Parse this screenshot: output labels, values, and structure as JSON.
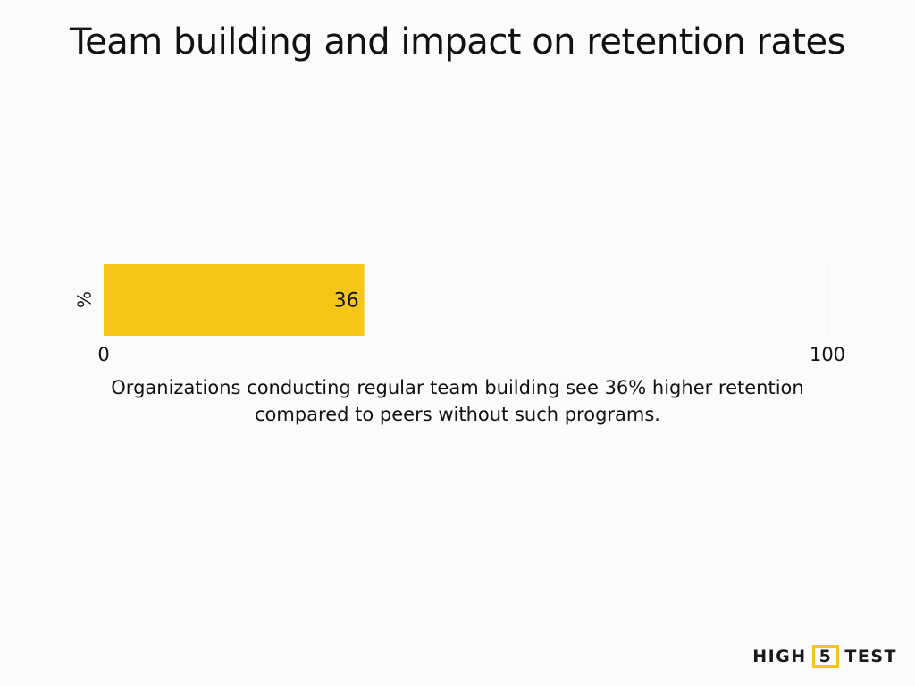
{
  "chart_data": {
    "type": "bar",
    "orientation": "horizontal",
    "title": "Team building and impact on retention rates",
    "categories": [
      "%"
    ],
    "values": [
      36
    ],
    "data_labels": [
      "36"
    ],
    "xlim": [
      0,
      100
    ],
    "x_tick_labels": [
      "0",
      "100"
    ],
    "grid": false,
    "legend": "none",
    "bar_color": "#f5c518"
  },
  "caption": "Organizations conducting regular team building see 36% higher retention compared to peers without such programs.",
  "brand": {
    "left": "HIGH",
    "badge": "5",
    "right": "TEST",
    "accent_color": "#f5c518"
  }
}
